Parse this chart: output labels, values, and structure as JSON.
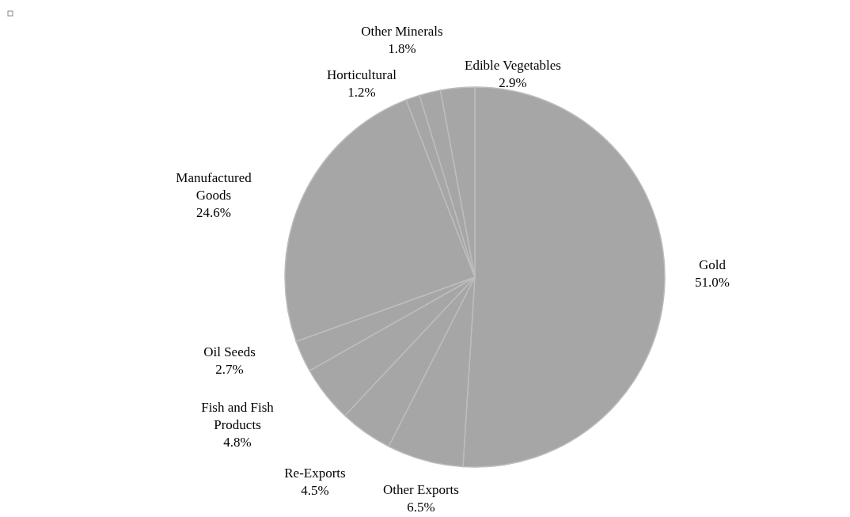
{
  "chart_data": {
    "type": "pie",
    "categories": [
      "Gold",
      "Other Exports",
      "Re-Exports",
      "Fish and Fish Products",
      "Oil Seeds",
      "Manufactured Goods",
      "Horticultural",
      "Other Minerals",
      "Edible Vegetables"
    ],
    "values": [
      51.0,
      6.5,
      4.5,
      4.8,
      2.7,
      24.6,
      1.2,
      1.8,
      2.9
    ],
    "value_labels": [
      "51.0%",
      "6.5%",
      "4.5%",
      "4.8%",
      "2.7%",
      "24.6%",
      "1.2%",
      "1.8%",
      "2.9%"
    ],
    "colors": [
      "#a6a6a6",
      "#a6a6a6",
      "#a6a6a6",
      "#a6a6a6",
      "#a6a6a6",
      "#a6a6a6",
      "#a6a6a6",
      "#a6a6a6",
      "#a6a6a6"
    ]
  }
}
